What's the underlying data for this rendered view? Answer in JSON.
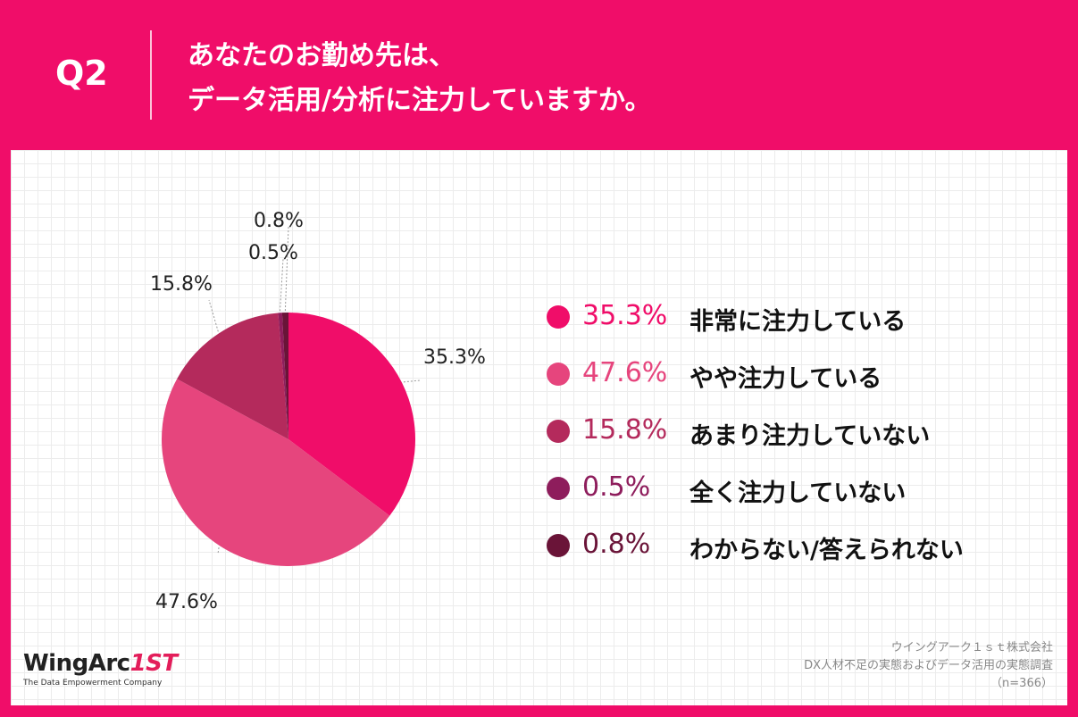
{
  "header": {
    "q_label": "Q2",
    "title_line1": "あなたのお勤め先は、",
    "title_line2": "データ活用/分析に注力していますか。"
  },
  "chart_data": {
    "type": "pie",
    "title": "あなたのお勤め先は、データ活用/分析に注力していますか。",
    "categories": [
      "非常に注力している",
      "やや注力している",
      "あまり注力していない",
      "全く注力していない",
      "わからない/答えられない"
    ],
    "values": [
      35.3,
      47.6,
      15.8,
      0.5,
      0.8
    ],
    "labels": [
      "35.3%",
      "47.6%",
      "15.8%",
      "0.5%",
      "0.8%"
    ],
    "colors": [
      "#f00d69",
      "#e6457d",
      "#b42a5c",
      "#8e1d5c",
      "#6a1438"
    ]
  },
  "legend": [
    {
      "pct": "35.3%",
      "label": "非常に注力している",
      "color": "#f00d69"
    },
    {
      "pct": "47.6%",
      "label": "やや注力している",
      "color": "#e6457d"
    },
    {
      "pct": "15.8%",
      "label": "あまり注力していない",
      "color": "#b42a5c"
    },
    {
      "pct": "0.5%",
      "label": "全く注力していない",
      "color": "#8e1d5c"
    },
    {
      "pct": "0.8%",
      "label": "わからない/答えられない",
      "color": "#6a1438"
    }
  ],
  "logo": {
    "name_main": "WingArc",
    "name_accent": "1ST",
    "tagline": "The Data Empowerment Company"
  },
  "source": {
    "company": "ウイングアーク１ｓｔ株式会社",
    "survey": "DX人材不足の実態およびデータ活用の実態調査",
    "sample": "（n=366）"
  }
}
